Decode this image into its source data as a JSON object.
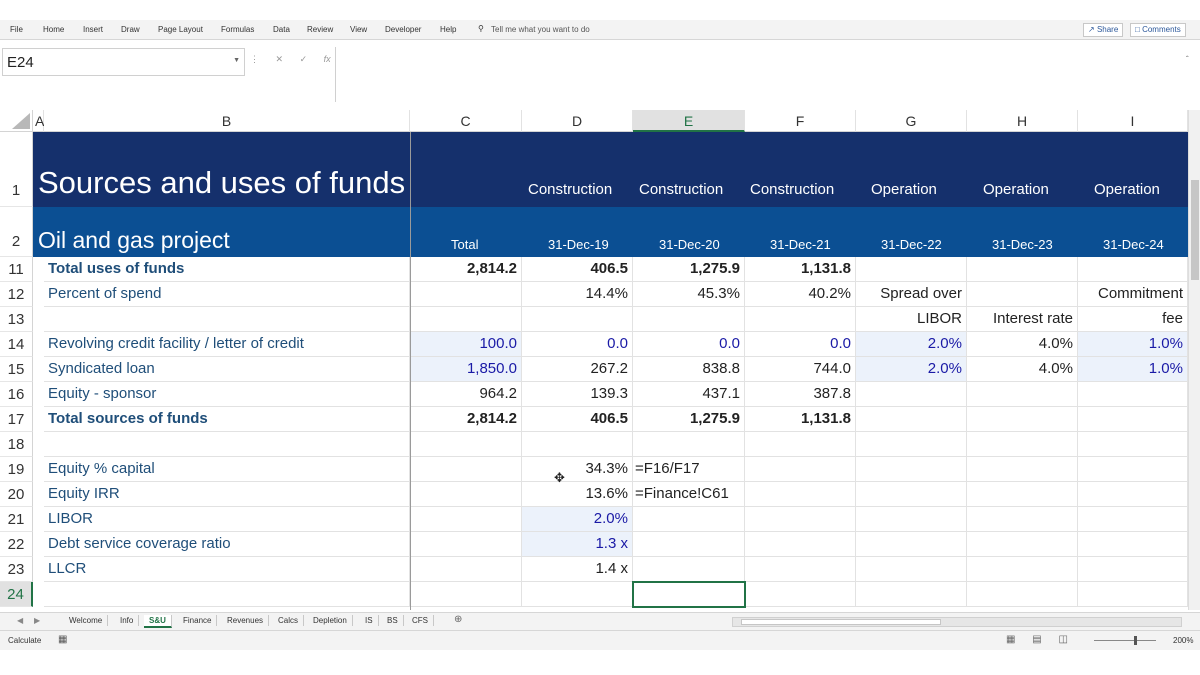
{
  "menu": {
    "items": [
      "File",
      "Home",
      "Insert",
      "Draw",
      "Page Layout",
      "Formulas",
      "Data",
      "Review",
      "View",
      "Developer",
      "Help"
    ],
    "tell_me": "Tell me what you want to do",
    "share": "Share",
    "comments": "Comments"
  },
  "formula_bar": {
    "name_box": "E24",
    "formula": ""
  },
  "columns": [
    "A",
    "B",
    "C",
    "D",
    "E",
    "F",
    "G",
    "H",
    "I"
  ],
  "selected_column": "E",
  "header": {
    "title": "Sources and uses of funds",
    "subtitle": "Oil and gas project",
    "row1_num": "1",
    "row2_num": "2",
    "phases": [
      "Construction",
      "Construction",
      "Construction",
      "Operation",
      "Operation",
      "Operation"
    ],
    "total_label": "Total",
    "dates": [
      "31-Dec-19",
      "31-Dec-20",
      "31-Dec-21",
      "31-Dec-22",
      "31-Dec-23",
      "31-Dec-24"
    ]
  },
  "rows": {
    "r11": {
      "num": "11",
      "label": "Total uses of funds",
      "c": "2,814.2",
      "d": "406.5",
      "e": "1,275.9",
      "f": "1,131.8"
    },
    "r12": {
      "num": "12",
      "label": "Percent of spend",
      "d": "14.4%",
      "e": "45.3%",
      "f": "40.2%",
      "g": "Spread over",
      "i": "Commitment"
    },
    "r13": {
      "num": "13",
      "g": "LIBOR",
      "h": "Interest rate",
      "i": "fee"
    },
    "r14": {
      "num": "14",
      "label": "Revolving credit facility / letter of credit",
      "c": "100.0",
      "d": "0.0",
      "e": "0.0",
      "f": "0.0",
      "g": "2.0%",
      "h": "4.0%",
      "i": "1.0%"
    },
    "r15": {
      "num": "15",
      "label": "Syndicated loan",
      "c": "1,850.0",
      "d": "267.2",
      "e": "838.8",
      "f": "744.0",
      "g": "2.0%",
      "h": "4.0%",
      "i": "1.0%"
    },
    "r16": {
      "num": "16",
      "label": "Equity - sponsor",
      "c": "964.2",
      "d": "139.3",
      "e": "437.1",
      "f": "387.8"
    },
    "r17": {
      "num": "17",
      "label": "Total sources of funds",
      "c": "2,814.2",
      "d": "406.5",
      "e": "1,275.9",
      "f": "1,131.8"
    },
    "r18": {
      "num": "18"
    },
    "r19": {
      "num": "19",
      "label": "Equity % capital",
      "d": "34.3%",
      "e": "=F16/F17"
    },
    "r20": {
      "num": "20",
      "label": "Equity IRR",
      "d": "13.6%",
      "e": "=Finance!C61"
    },
    "r21": {
      "num": "21",
      "label": "LIBOR",
      "d": "2.0%"
    },
    "r22": {
      "num": "22",
      "label": "Debt service coverage ratio",
      "d": "1.3 x"
    },
    "r23": {
      "num": "23",
      "label": "LLCR",
      "d": "1.4 x"
    },
    "r24": {
      "num": "24"
    }
  },
  "sheet_tabs": [
    "Welcome",
    "Info",
    "S&U",
    "Finance",
    "Revenues",
    "Calcs",
    "Depletion",
    "IS",
    "BS",
    "CFS"
  ],
  "active_tab": "S&U",
  "status": {
    "mode": "Calculate",
    "zoom": "200%"
  }
}
